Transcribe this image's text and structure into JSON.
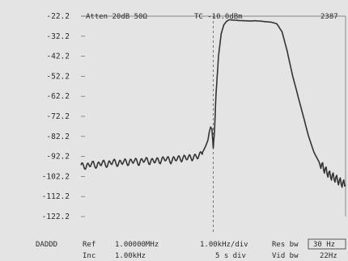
{
  "header": {
    "atten": "Atten 20dB 50Ω",
    "tc": "TC -10.0dBm",
    "counter": "2387"
  },
  "footer": {
    "mode": "DADDD",
    "ref_label": "Ref",
    "ref_value": "1.00000MHz",
    "inc_label": "Inc",
    "inc_value": "1.00kHz",
    "hdiv": "1.00kHz/div",
    "time_div": "5 s  div",
    "res_bw_label": "Res bw",
    "res_bw_value": "30 Hz",
    "vid_bw_label": "Vid bw",
    "vid_bw_value": "22Hz"
  },
  "chart_data": {
    "type": "line",
    "title": "",
    "xlabel": "",
    "ylabel": "",
    "x_unit": "div",
    "xlim": [
      0,
      10
    ],
    "ylim": [
      -122.2,
      -22.2
    ],
    "yticks": [
      "-22.2",
      "-32.2",
      "-42.2",
      "-52.2",
      "-62.2",
      "-72.2",
      "-82.2",
      "-92.2",
      "-102.2",
      "-112.2",
      "-122.2"
    ],
    "grid": false,
    "center_marker_x": 5,
    "series": [
      {
        "x": [
          0.0,
          0.2,
          0.4,
          0.6,
          0.8,
          1.0,
          1.2,
          1.4,
          1.6,
          1.8,
          2.0,
          2.2,
          2.4,
          2.6,
          2.8,
          3.0,
          3.2,
          3.4,
          3.6,
          3.8,
          4.0,
          4.2,
          4.4,
          4.5,
          4.6,
          4.7,
          4.8,
          4.85,
          4.9,
          4.95,
          5.0,
          5.05,
          5.1,
          5.2,
          5.3,
          5.4,
          5.5,
          5.6,
          5.8,
          6.0,
          6.2,
          6.4,
          6.6,
          6.8,
          7.0,
          7.2,
          7.4,
          7.6,
          7.8,
          8.0,
          8.2,
          8.4,
          8.6,
          8.8,
          9.0,
          9.2,
          9.4,
          9.6,
          9.8,
          10.0
        ],
        "y": [
          -96.5,
          -97.5,
          -95.5,
          -97.0,
          -95.0,
          -96.5,
          -94.5,
          -96.0,
          -94.5,
          -95.5,
          -94.0,
          -95.5,
          -93.5,
          -95.0,
          -94.0,
          -94.5,
          -93.0,
          -94.5,
          -93.0,
          -93.5,
          -92.5,
          -93.0,
          -92.0,
          -91.5,
          -90.0,
          -87.5,
          -84.0,
          -80.0,
          -77.5,
          -78.5,
          -88.0,
          -79.0,
          -62.0,
          -42.0,
          -31.0,
          -26.5,
          -24.8,
          -24.0,
          -24.2,
          -24.4,
          -24.5,
          -24.6,
          -24.5,
          -24.7,
          -25.0,
          -25.2,
          -26.0,
          -30.0,
          -40.0,
          -52.0,
          -62.0,
          -72.0,
          -82.0,
          -90.0,
          -95.0,
          -98.5,
          -101.5,
          -103.0,
          -105.0,
          -106.5
        ]
      }
    ]
  }
}
